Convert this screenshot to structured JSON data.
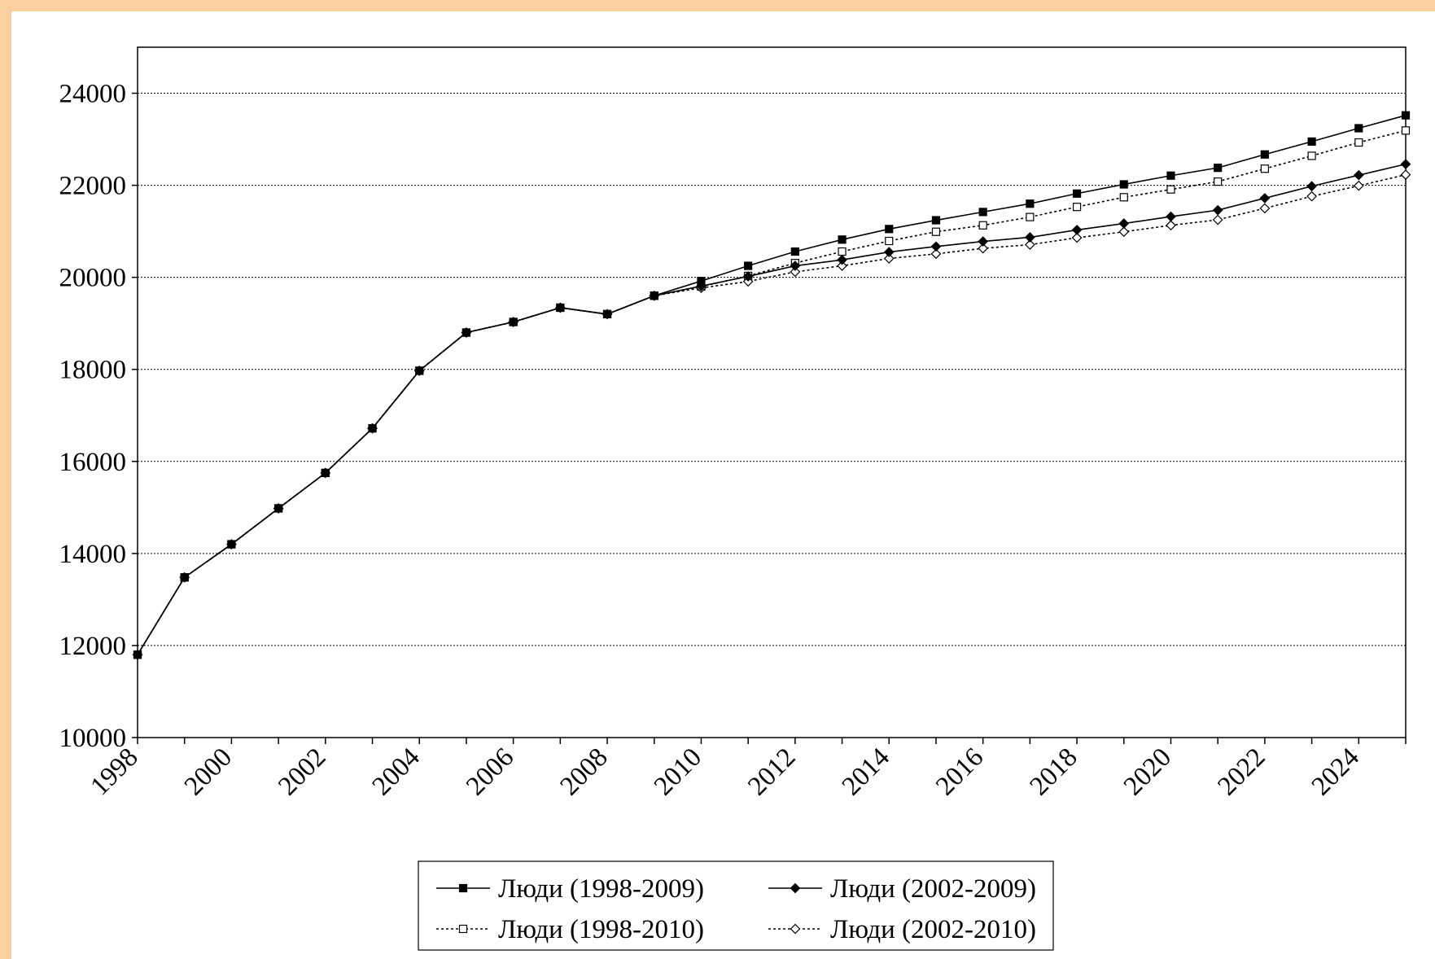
{
  "chart_data": {
    "type": "line",
    "title": "",
    "xlabel": "",
    "ylabel": "",
    "ylim": [
      10000,
      25000
    ],
    "y_ticks": [
      10000,
      12000,
      14000,
      16000,
      18000,
      20000,
      22000,
      24000
    ],
    "x_ticks": [
      1998,
      2000,
      2002,
      2004,
      2006,
      2008,
      2010,
      2012,
      2014,
      2016,
      2018,
      2020,
      2022,
      2024
    ],
    "xlim": [
      1998,
      2025
    ],
    "grid": "horizontal dotted",
    "legend_position": "bottom",
    "x": [
      1998,
      1999,
      2000,
      2001,
      2002,
      2003,
      2004,
      2005,
      2006,
      2007,
      2008,
      2009,
      2010,
      2011,
      2012,
      2013,
      2014,
      2015,
      2016,
      2017,
      2018,
      2019,
      2020,
      2021,
      2022,
      2023,
      2024,
      2025
    ],
    "series": [
      {
        "name": "Люди (1998-2009)",
        "line": "solid",
        "marker": "square-filled",
        "values": [
          11800,
          13480,
          14200,
          14980,
          15750,
          16720,
          17970,
          18800,
          19030,
          19340,
          19200,
          19600,
          19920,
          20250,
          20560,
          20820,
          21050,
          21240,
          21420,
          21600,
          21820,
          22020,
          22210,
          22380,
          22670,
          22950,
          23240,
          23520
        ]
      },
      {
        "name": "Люди (2002-2009)",
        "line": "solid",
        "marker": "diamond-filled",
        "values": [
          11800,
          13480,
          14200,
          14980,
          15750,
          16720,
          17970,
          18800,
          19030,
          19340,
          19200,
          19600,
          19810,
          20020,
          20250,
          20380,
          20550,
          20670,
          20780,
          20870,
          21030,
          21170,
          21320,
          21460,
          21720,
          21980,
          22220,
          22460
        ]
      },
      {
        "name": "Люди (1998-2010)",
        "line": "dotted",
        "marker": "square-open",
        "values": [
          11800,
          13480,
          14200,
          14980,
          15750,
          16720,
          17970,
          18800,
          19030,
          19340,
          19200,
          19600,
          19800,
          20030,
          20310,
          20560,
          20790,
          20990,
          21130,
          21310,
          21530,
          21740,
          21910,
          22080,
          22360,
          22640,
          22930,
          23190
        ]
      },
      {
        "name": "Люди (2002-2010)",
        "line": "dotted",
        "marker": "diamond-open",
        "values": [
          11800,
          13480,
          14200,
          14980,
          15750,
          16720,
          17970,
          18800,
          19030,
          19340,
          19200,
          19600,
          19770,
          19910,
          20120,
          20250,
          20410,
          20510,
          20630,
          20710,
          20860,
          20990,
          21130,
          21250,
          21500,
          21760,
          21990,
          22230
        ]
      }
    ]
  }
}
